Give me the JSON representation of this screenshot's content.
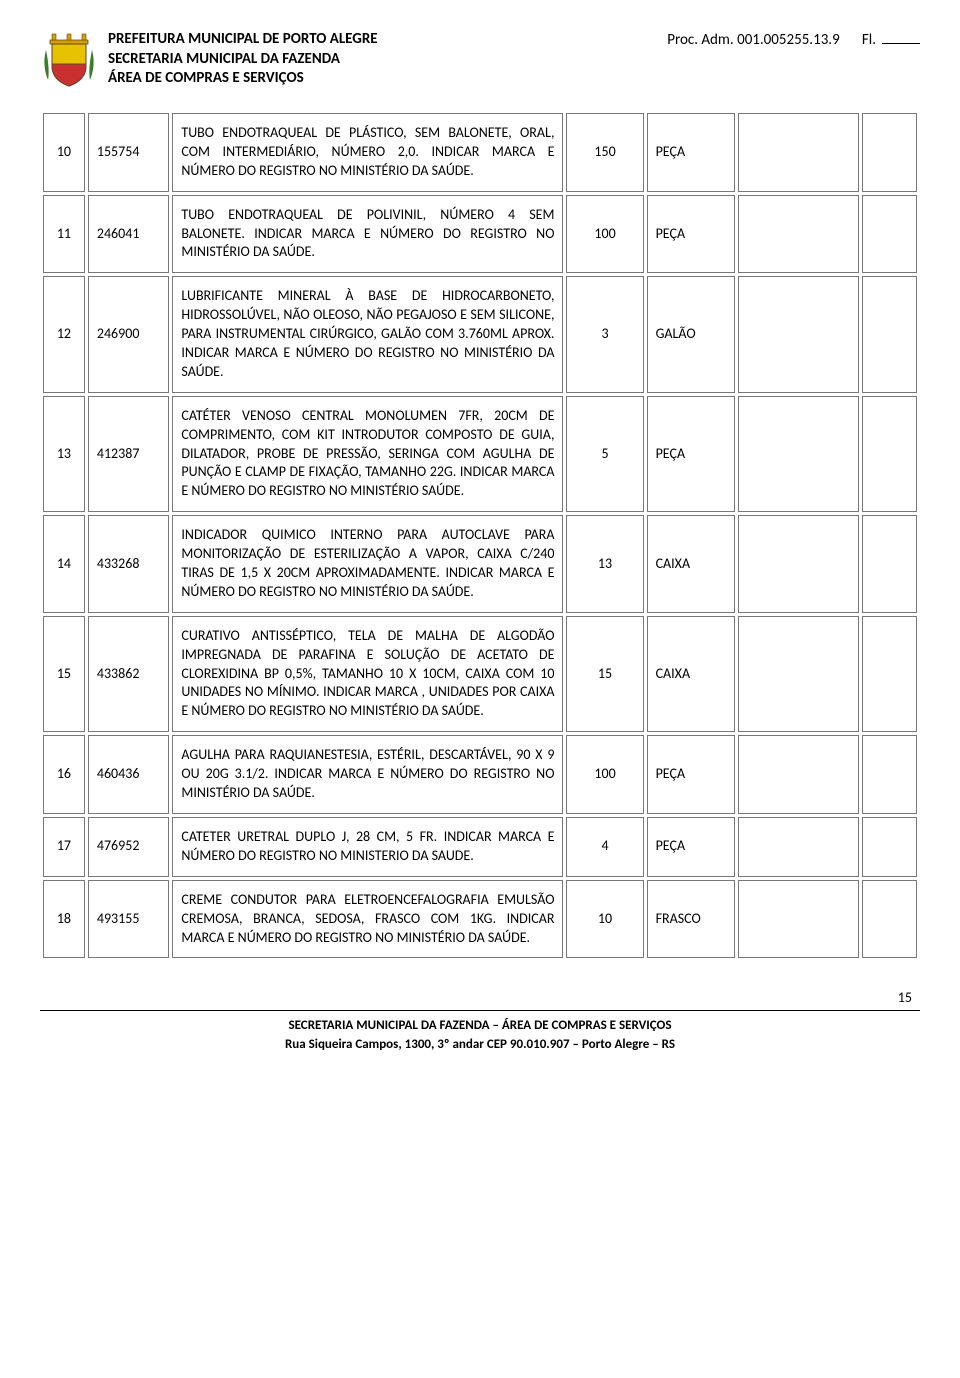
{
  "header": {
    "line1": "PREFEITURA MUNICIPAL DE PORTO ALEGRE",
    "line2": "SECRETARIA MUNICIPAL DA FAZENDA",
    "line3": "ÁREA DE COMPRAS E SERVIÇOS",
    "proc": "Proc. Adm. 001.005255.13.9",
    "fl_label": "Fl."
  },
  "crest_colors": {
    "shield_top": "#e7c200",
    "shield_bottom": "#c93030",
    "crown": "#d4a000",
    "outline": "#654321",
    "leaf": "#3a7c2a"
  },
  "rows": [
    {
      "num": "10",
      "code": "155754",
      "desc": "TUBO ENDOTRAQUEAL DE PLÁSTICO, SEM BALONETE, ORAL, COM INTERMEDIÁRIO, NÚMERO 2,0. INDICAR MARCA E NÚMERO DO REGISTRO NO MINISTÉRIO DA SAÚDE.",
      "qty": "150",
      "unit": "PEÇA"
    },
    {
      "num": "11",
      "code": "246041",
      "desc": "TUBO ENDOTRAQUEAL DE POLIVINIL, NÚMERO 4 SEM BALONETE. INDICAR MARCA E NÚMERO DO REGISTRO NO MINISTÉRIO DA SAÚDE.",
      "qty": "100",
      "unit": "PEÇA"
    },
    {
      "num": "12",
      "code": "246900",
      "desc": "LUBRIFICANTE MINERAL À BASE DE HIDROCARBONETO, HIDROSSOLÚVEL, NÃO OLEOSO, NÃO PEGAJOSO E SEM SILICONE, PARA INSTRUMENTAL CIRÚRGICO, GALÃO COM 3.760ML APROX. INDICAR MARCA E NÚMERO DO REGISTRO NO MINISTÉRIO DA SAÚDE.",
      "qty": "3",
      "unit": "GALÃO"
    },
    {
      "num": "13",
      "code": "412387",
      "desc": " CATÉTER VENOSO CENTRAL MONOLUMEN 7FR, 20CM DE COMPRIMENTO, COM KIT INTRODUTOR COMPOSTO DE GUIA, DILATADOR, PROBE DE PRESSÃO, SERINGA COM AGULHA DE PUNÇÃO E CLAMP DE FIXAÇÃO, TAMANHO 22G. INDICAR MARCA E NÚMERO DO REGISTRO NO MINISTÉRIO SAÚDE.",
      "qty": "5",
      "unit": "PEÇA"
    },
    {
      "num": "14",
      "code": "433268",
      "desc": "INDICADOR QUIMICO INTERNO PARA AUTOCLAVE PARA MONITORIZAÇÃO DE ESTERILIZAÇÃO A VAPOR, CAIXA C/240 TIRAS DE 1,5 X 20CM APROXIMADAMENTE. INDICAR MARCA E NÚMERO DO REGISTRO NO MINISTÉRIO DA SAÚDE.",
      "qty": "13",
      "unit": "CAIXA"
    },
    {
      "num": "15",
      "code": "433862",
      "desc": "CURATIVO ANTISSÉPTICO, TELA DE MALHA DE ALGODÃO IMPREGNADA DE PARAFINA E SOLUÇÃO DE ACETATO DE CLOREXIDINA BP 0,5%, TAMANHO 10 X 10CM, CAIXA COM 10 UNIDADES NO MÍNIMO. INDICAR MARCA , UNIDADES POR CAIXA E NÚMERO DO REGISTRO NO MINISTÉRIO DA SAÚDE.",
      "qty": "15",
      "unit": "CAIXA"
    },
    {
      "num": "16",
      "code": "460436",
      "desc": "AGULHA PARA RAQUIANESTESIA, ESTÉRIL, DESCARTÁVEL, 90 X 9 OU 20G 3.1/2. INDICAR MARCA E NÚMERO DO REGISTRO NO MINISTÉRIO DA SAÚDE.",
      "qty": "100",
      "unit": "PEÇA"
    },
    {
      "num": "17",
      "code": "476952",
      "desc": "CATETER URETRAL DUPLO J, 28 CM, 5 FR. INDICAR MARCA E NÚMERO DO REGISTRO NO MINISTERIO DA SAUDE.",
      "qty": "4",
      "unit": "PEÇA"
    },
    {
      "num": "18",
      "code": "493155",
      "desc": "CREME CONDUTOR PARA ELETROENCEFALOGRAFIA EMULSÃO CREMOSA, BRANCA, SEDOSA, FRASCO COM 1KG. INDICAR MARCA E NÚMERO DO REGISTRO NO MINISTÉRIO DA SAÚDE.",
      "qty": "10",
      "unit": "FRASCO"
    }
  ],
  "page_number": "15",
  "footer": {
    "line1": "SECRETARIA MUNICIPAL DA FAZENDA – ÁREA DE COMPRAS E SERVIÇOS",
    "line2": "Rua Siqueira Campos, 1300, 3º andar  CEP 90.010.907 – Porto Alegre – RS"
  }
}
